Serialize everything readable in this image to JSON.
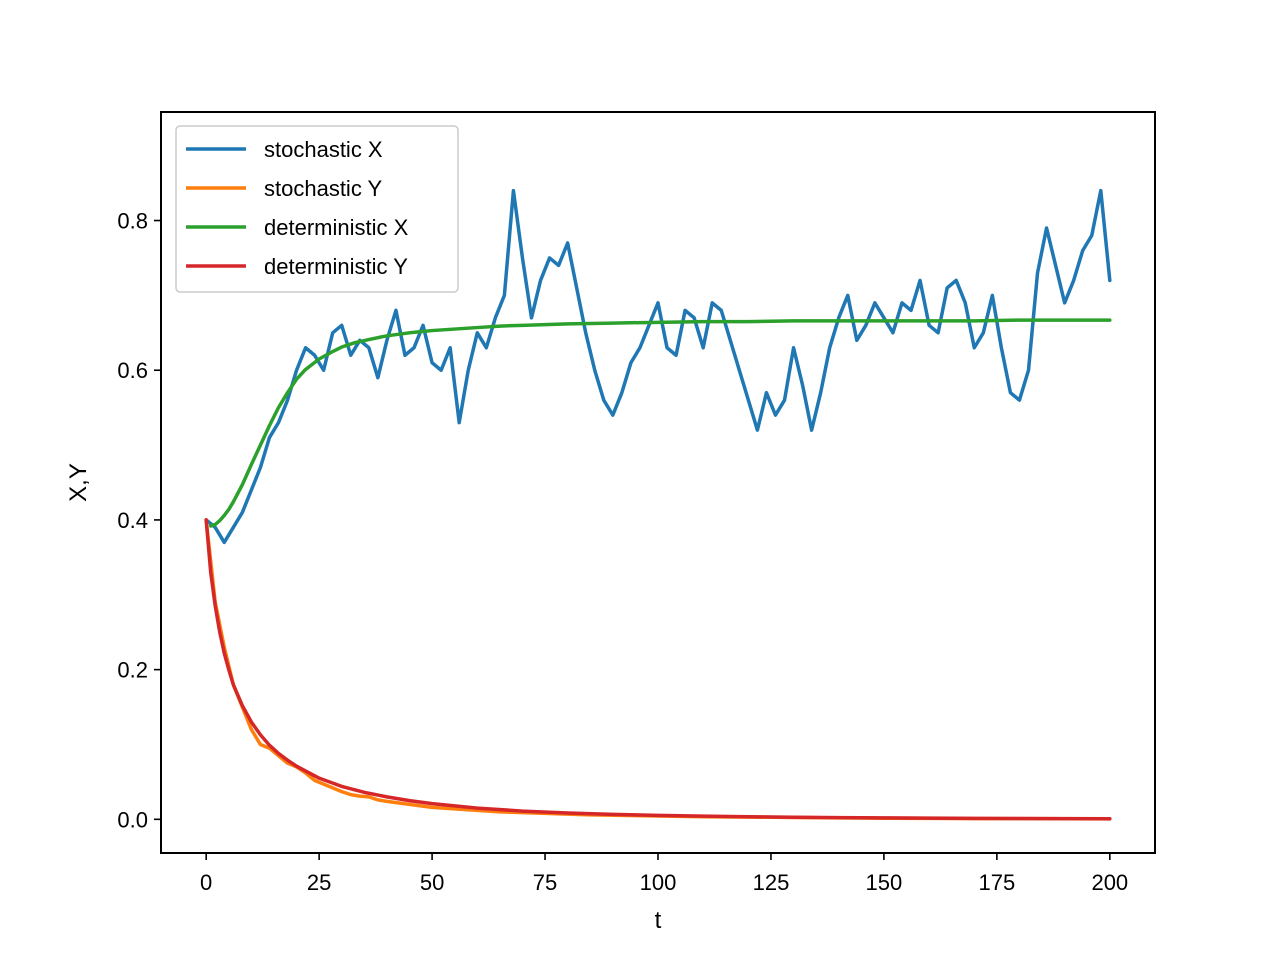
{
  "chart_data": {
    "type": "line",
    "title": "",
    "xlabel": "t",
    "ylabel": "X,Y",
    "xlim": [
      -10,
      210
    ],
    "ylim": [
      -0.045,
      0.945
    ],
    "xticks": [
      0,
      25,
      50,
      75,
      100,
      125,
      150,
      175,
      200
    ],
    "yticks": [
      0.0,
      0.2,
      0.4,
      0.6,
      0.8
    ],
    "ytick_labels": [
      "0.0",
      "0.2",
      "0.4",
      "0.6",
      "0.8"
    ],
    "grid": false,
    "legend": {
      "placement": "top-left"
    },
    "series": [
      {
        "name": "stochastic X",
        "color": "#1f77b4",
        "x": [
          0,
          2,
          4,
          6,
          8,
          10,
          12,
          14,
          16,
          18,
          20,
          22,
          24,
          26,
          28,
          30,
          32,
          34,
          36,
          38,
          40,
          42,
          44,
          46,
          48,
          50,
          52,
          54,
          56,
          58,
          60,
          62,
          64,
          66,
          68,
          70,
          72,
          74,
          76,
          78,
          80,
          82,
          84,
          86,
          88,
          90,
          92,
          94,
          96,
          98,
          100,
          102,
          104,
          106,
          108,
          110,
          112,
          114,
          116,
          118,
          120,
          122,
          124,
          126,
          128,
          130,
          132,
          134,
          136,
          138,
          140,
          142,
          144,
          146,
          148,
          150,
          152,
          154,
          156,
          158,
          160,
          162,
          164,
          166,
          168,
          170,
          172,
          174,
          176,
          178,
          180,
          182,
          184,
          186,
          188,
          190,
          192,
          194,
          196,
          198,
          200
        ],
        "y": [
          0.4,
          0.39,
          0.37,
          0.39,
          0.41,
          0.44,
          0.47,
          0.51,
          0.53,
          0.56,
          0.6,
          0.63,
          0.62,
          0.6,
          0.65,
          0.66,
          0.62,
          0.64,
          0.63,
          0.59,
          0.64,
          0.68,
          0.62,
          0.63,
          0.66,
          0.61,
          0.6,
          0.63,
          0.53,
          0.6,
          0.65,
          0.63,
          0.67,
          0.7,
          0.84,
          0.75,
          0.67,
          0.72,
          0.75,
          0.74,
          0.77,
          0.71,
          0.65,
          0.6,
          0.56,
          0.54,
          0.57,
          0.61,
          0.63,
          0.66,
          0.69,
          0.63,
          0.62,
          0.68,
          0.67,
          0.63,
          0.69,
          0.68,
          0.64,
          0.6,
          0.56,
          0.52,
          0.57,
          0.54,
          0.56,
          0.63,
          0.58,
          0.52,
          0.57,
          0.63,
          0.67,
          0.7,
          0.64,
          0.66,
          0.69,
          0.67,
          0.65,
          0.69,
          0.68,
          0.72,
          0.66,
          0.65,
          0.71,
          0.72,
          0.69,
          0.63,
          0.65,
          0.7,
          0.63,
          0.57,
          0.56,
          0.6,
          0.73,
          0.79,
          0.74,
          0.69,
          0.72,
          0.76,
          0.78,
          0.84,
          0.72
        ]
      },
      {
        "name": "stochastic Y",
        "color": "#ff7f0e",
        "x": [
          0,
          2,
          4,
          6,
          8,
          10,
          12,
          14,
          16,
          18,
          20,
          22,
          24,
          26,
          28,
          30,
          32,
          34,
          36,
          38,
          40,
          45,
          50,
          55,
          60,
          65,
          70,
          75,
          80,
          85,
          90,
          95,
          100,
          110,
          120,
          130,
          140,
          150,
          160,
          170,
          180,
          190,
          200
        ],
        "y": [
          0.4,
          0.29,
          0.23,
          0.18,
          0.15,
          0.12,
          0.1,
          0.095,
          0.085,
          0.075,
          0.07,
          0.062,
          0.052,
          0.047,
          0.042,
          0.037,
          0.033,
          0.031,
          0.03,
          0.026,
          0.024,
          0.02,
          0.016,
          0.014,
          0.012,
          0.01,
          0.009,
          0.008,
          0.007,
          0.006,
          0.0055,
          0.005,
          0.0045,
          0.0035,
          0.003,
          0.0025,
          0.002,
          0.0015,
          0.0012,
          0.001,
          0.001,
          0.0008,
          0.0006
        ]
      },
      {
        "name": "deterministic X",
        "color": "#2ca02c",
        "x": [
          1,
          2,
          3,
          4,
          5,
          6,
          8,
          10,
          12,
          14,
          16,
          18,
          20,
          22,
          25,
          28,
          30,
          33,
          36,
          40,
          45,
          50,
          55,
          60,
          65,
          70,
          75,
          80,
          90,
          100,
          110,
          120,
          130,
          140,
          150,
          160,
          170,
          180,
          190,
          200
        ],
        "y": [
          0.392,
          0.394,
          0.399,
          0.406,
          0.414,
          0.424,
          0.447,
          0.474,
          0.5,
          0.526,
          0.55,
          0.57,
          0.588,
          0.601,
          0.615,
          0.625,
          0.631,
          0.637,
          0.641,
          0.646,
          0.65,
          0.653,
          0.655,
          0.657,
          0.659,
          0.66,
          0.661,
          0.662,
          0.663,
          0.664,
          0.665,
          0.665,
          0.666,
          0.666,
          0.666,
          0.666,
          0.666,
          0.667,
          0.667,
          0.667
        ]
      },
      {
        "name": "deterministic Y",
        "color": "#d62728",
        "x": [
          0,
          1,
          2,
          3,
          4,
          5,
          6,
          8,
          10,
          12,
          14,
          16,
          18,
          20,
          25,
          30,
          35,
          40,
          45,
          50,
          55,
          60,
          70,
          80,
          90,
          100,
          110,
          120,
          130,
          140,
          150,
          160,
          170,
          180,
          190,
          200
        ],
        "y": [
          0.4,
          0.33,
          0.285,
          0.25,
          0.222,
          0.2,
          0.18,
          0.152,
          0.13,
          0.113,
          0.099,
          0.088,
          0.079,
          0.071,
          0.055,
          0.044,
          0.036,
          0.03,
          0.025,
          0.021,
          0.018,
          0.015,
          0.011,
          0.0085,
          0.0066,
          0.0052,
          0.0042,
          0.0034,
          0.0028,
          0.0023,
          0.0019,
          0.0016,
          0.0013,
          0.0011,
          0.0009,
          0.0008
        ]
      }
    ]
  }
}
